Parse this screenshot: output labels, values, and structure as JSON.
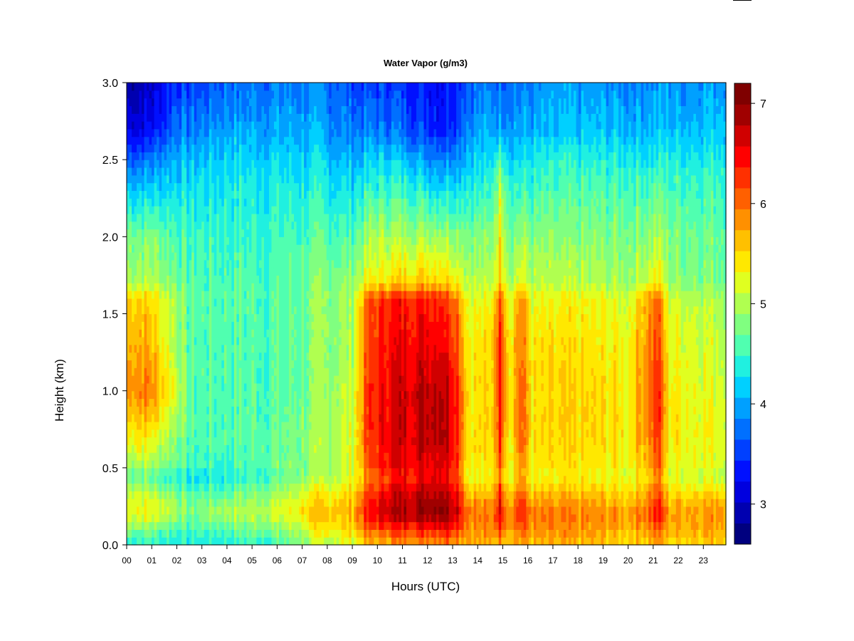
{
  "chart_data": {
    "type": "heatmap",
    "title": "Water Vapor (g/m3)",
    "xlabel": "Hours (UTC)",
    "ylabel": "Height (km)",
    "xlim": [
      0,
      23.9
    ],
    "ylim": [
      0.0,
      3.0
    ],
    "x_tick_labels": [
      "00",
      "01",
      "02",
      "03",
      "04",
      "05",
      "06",
      "07",
      "08",
      "09",
      "10",
      "11",
      "12",
      "13",
      "14",
      "15",
      "16",
      "17",
      "18",
      "19",
      "20",
      "21",
      "22",
      "23"
    ],
    "y_tick_labels": [
      "0.0",
      "0.5",
      "1.0",
      "1.5",
      "2.0",
      "2.5",
      "3.0"
    ],
    "colorbar": {
      "range": [
        2.6,
        7.2
      ],
      "tick_labels": [
        "3",
        "4",
        "5",
        "6",
        "7"
      ],
      "colors": [
        "#00007f",
        "#0000b0",
        "#0000df",
        "#0010ff",
        "#0040ff",
        "#0070ff",
        "#00a0ff",
        "#00d0ff",
        "#20f0e0",
        "#50ffb0",
        "#80ff80",
        "#b0ff50",
        "#e0ff20",
        "#ffe800",
        "#ffc000",
        "#ff9000",
        "#ff6000",
        "#ff3000",
        "#ff0000",
        "#d00000",
        "#a00000",
        "#7f0000"
      ]
    },
    "heights_km": [
      0.0,
      0.1,
      0.2,
      0.3,
      0.45,
      0.5,
      0.7,
      1.0,
      1.3,
      1.6,
      1.7,
      2.0,
      2.4,
      2.7,
      3.0
    ],
    "profiles": [
      {
        "hour": 0.0,
        "values": [
          4.4,
          4.8,
          5.3,
          5.2,
          4.7,
          4.9,
          5.3,
          5.8,
          5.7,
          5.5,
          5.0,
          4.8,
          4.0,
          3.2,
          2.9
        ]
      },
      {
        "hour": 0.5,
        "values": [
          4.4,
          4.8,
          5.4,
          5.3,
          4.7,
          5.0,
          5.5,
          6.0,
          5.8,
          5.6,
          5.0,
          4.8,
          4.0,
          3.2,
          2.9
        ]
      },
      {
        "hour": 1.0,
        "values": [
          4.4,
          4.8,
          5.3,
          5.2,
          4.6,
          4.9,
          5.3,
          5.9,
          5.6,
          5.5,
          5.0,
          4.8,
          4.0,
          3.3,
          3.0
        ]
      },
      {
        "hour": 2.0,
        "values": [
          4.4,
          4.6,
          5.0,
          4.9,
          4.4,
          4.7,
          4.9,
          5.2,
          5.0,
          5.0,
          4.8,
          4.6,
          4.2,
          3.8,
          3.5
        ]
      },
      {
        "hour": 2.5,
        "values": [
          4.3,
          4.5,
          4.8,
          4.7,
          4.2,
          4.5,
          4.6,
          4.6,
          4.6,
          4.6,
          4.6,
          4.5,
          4.2,
          3.8,
          3.5
        ]
      },
      {
        "hour": 4.0,
        "values": [
          4.4,
          4.6,
          5.0,
          4.8,
          4.4,
          4.5,
          4.6,
          4.6,
          4.6,
          4.6,
          4.6,
          4.5,
          4.3,
          4.0,
          3.7
        ]
      },
      {
        "hour": 6.0,
        "values": [
          4.5,
          4.8,
          5.2,
          5.0,
          4.6,
          4.7,
          4.7,
          4.6,
          4.6,
          4.6,
          4.6,
          4.5,
          4.3,
          4.0,
          3.8
        ]
      },
      {
        "hour": 7.5,
        "values": [
          4.9,
          5.3,
          5.6,
          5.4,
          4.9,
          4.9,
          4.9,
          4.8,
          4.8,
          4.8,
          4.8,
          4.6,
          4.3,
          4.0,
          3.8
        ]
      },
      {
        "hour": 9.0,
        "values": [
          5.2,
          5.5,
          5.7,
          5.6,
          5.2,
          5.2,
          5.2,
          5.1,
          5.0,
          5.0,
          4.9,
          4.6,
          4.2,
          3.8,
          3.6
        ]
      },
      {
        "hour": 9.6,
        "values": [
          5.5,
          6.0,
          6.4,
          6.2,
          5.8,
          6.0,
          6.2,
          6.2,
          6.1,
          6.0,
          5.3,
          4.9,
          4.3,
          3.8,
          3.5
        ]
      },
      {
        "hour": 10.5,
        "values": [
          5.7,
          6.3,
          6.8,
          6.7,
          6.3,
          6.5,
          6.6,
          6.6,
          6.5,
          6.4,
          5.5,
          5.0,
          4.4,
          3.8,
          3.5
        ]
      },
      {
        "hour": 12.0,
        "values": [
          5.8,
          6.4,
          7.0,
          6.9,
          6.5,
          6.6,
          6.8,
          6.8,
          6.6,
          6.4,
          5.6,
          5.0,
          4.2,
          3.5,
          3.4
        ]
      },
      {
        "hour": 12.6,
        "values": [
          5.9,
          6.5,
          7.1,
          7.0,
          6.6,
          6.7,
          6.9,
          6.9,
          6.6,
          6.4,
          5.6,
          5.0,
          4.1,
          3.4,
          3.3
        ]
      },
      {
        "hour": 13.2,
        "values": [
          5.8,
          6.3,
          6.8,
          6.6,
          6.2,
          6.3,
          6.4,
          6.4,
          6.2,
          6.0,
          5.4,
          4.9,
          4.2,
          3.6,
          3.5
        ]
      },
      {
        "hour": 13.6,
        "values": [
          5.7,
          5.9,
          6.0,
          5.8,
          5.3,
          5.4,
          5.5,
          5.5,
          5.4,
          5.3,
          5.1,
          4.8,
          4.3,
          3.9,
          3.7
        ]
      },
      {
        "hour": 14.5,
        "values": [
          5.6,
          5.8,
          5.9,
          5.7,
          5.2,
          5.3,
          5.4,
          5.4,
          5.4,
          5.2,
          5.0,
          4.8,
          4.3,
          4.0,
          3.8
        ]
      },
      {
        "hour": 14.9,
        "values": [
          5.8,
          6.2,
          6.6,
          6.4,
          6.0,
          6.1,
          6.3,
          6.4,
          6.4,
          6.2,
          5.6,
          5.4,
          5.0,
          4.0,
          3.8
        ]
      },
      {
        "hour": 15.3,
        "values": [
          5.6,
          5.8,
          5.9,
          5.7,
          5.2,
          5.3,
          5.4,
          5.4,
          5.4,
          5.2,
          5.0,
          4.8,
          4.4,
          4.0,
          3.8
        ]
      },
      {
        "hour": 15.7,
        "values": [
          5.7,
          6.1,
          6.4,
          6.2,
          5.8,
          5.9,
          6.1,
          6.1,
          6.0,
          5.9,
          5.3,
          4.9,
          4.4,
          4.0,
          3.8
        ]
      },
      {
        "hour": 16.2,
        "values": [
          5.6,
          5.8,
          5.9,
          5.7,
          5.2,
          5.3,
          5.4,
          5.4,
          5.4,
          5.2,
          5.0,
          4.8,
          4.4,
          4.0,
          3.8
        ]
      },
      {
        "hour": 18.0,
        "values": [
          5.6,
          5.8,
          5.9,
          5.7,
          5.3,
          5.4,
          5.5,
          5.5,
          5.4,
          5.3,
          5.0,
          4.8,
          4.5,
          4.1,
          3.9
        ]
      },
      {
        "hour": 20.0,
        "values": [
          5.5,
          5.7,
          5.8,
          5.6,
          5.2,
          5.3,
          5.4,
          5.4,
          5.3,
          5.2,
          4.9,
          4.8,
          4.5,
          4.1,
          3.9
        ]
      },
      {
        "hour": 20.9,
        "values": [
          5.6,
          5.9,
          6.2,
          6.0,
          5.6,
          5.8,
          6.0,
          6.1,
          6.0,
          5.9,
          5.3,
          4.9,
          4.5,
          4.1,
          3.9
        ]
      },
      {
        "hour": 21.2,
        "values": [
          5.7,
          6.1,
          6.5,
          6.3,
          5.9,
          6.1,
          6.3,
          6.4,
          6.2,
          6.1,
          5.4,
          5.0,
          4.5,
          4.1,
          3.9
        ]
      },
      {
        "hour": 21.6,
        "values": [
          5.5,
          5.7,
          5.8,
          5.6,
          5.2,
          5.3,
          5.4,
          5.4,
          5.3,
          5.2,
          4.9,
          4.8,
          4.5,
          4.1,
          3.9
        ]
      },
      {
        "hour": 23.9,
        "values": [
          5.6,
          5.8,
          5.9,
          5.7,
          5.1,
          5.2,
          5.3,
          5.2,
          5.1,
          5.0,
          4.8,
          4.7,
          4.5,
          4.2,
          4.0
        ]
      }
    ]
  }
}
